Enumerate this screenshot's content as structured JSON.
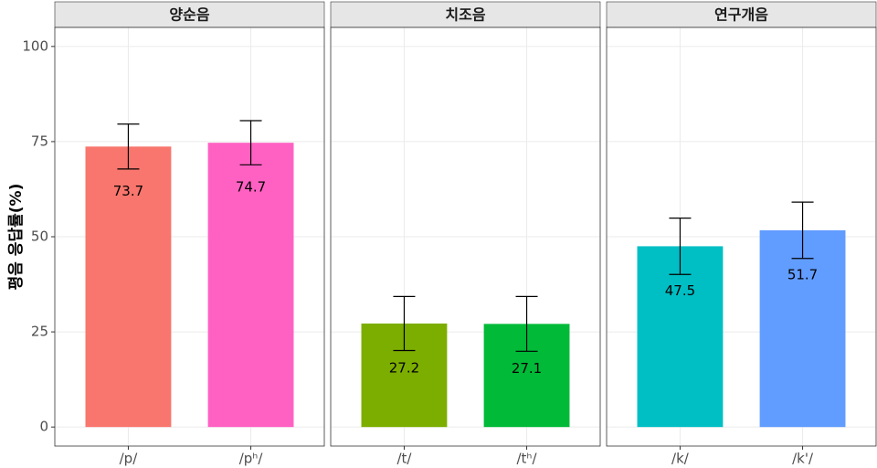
{
  "chart_data": {
    "type": "bar",
    "y_label": "평음 응답률(%)",
    "ylim": [
      -5,
      105
    ],
    "yticks": [
      0,
      25,
      50,
      75,
      100
    ],
    "grid": true,
    "panels": [
      {
        "title": "양순음",
        "categories": [
          "/p/",
          "/pʰ/"
        ],
        "values": [
          73.7,
          74.7
        ],
        "errors": [
          5.9,
          5.8
        ],
        "colors": [
          "#F8766D",
          "#FF61C3"
        ]
      },
      {
        "title": "치조음",
        "categories": [
          "/t/",
          "/tʰ/"
        ],
        "values": [
          27.2,
          27.1
        ],
        "errors": [
          7.1,
          7.2
        ],
        "colors": [
          "#7CAE00",
          "#00BA38"
        ]
      },
      {
        "title": "연구개음",
        "categories": [
          "/k/",
          "/k'/"
        ],
        "values": [
          47.5,
          51.7
        ],
        "errors": [
          7.4,
          7.4
        ],
        "colors": [
          "#00BFC4",
          "#619CFF"
        ]
      }
    ]
  }
}
